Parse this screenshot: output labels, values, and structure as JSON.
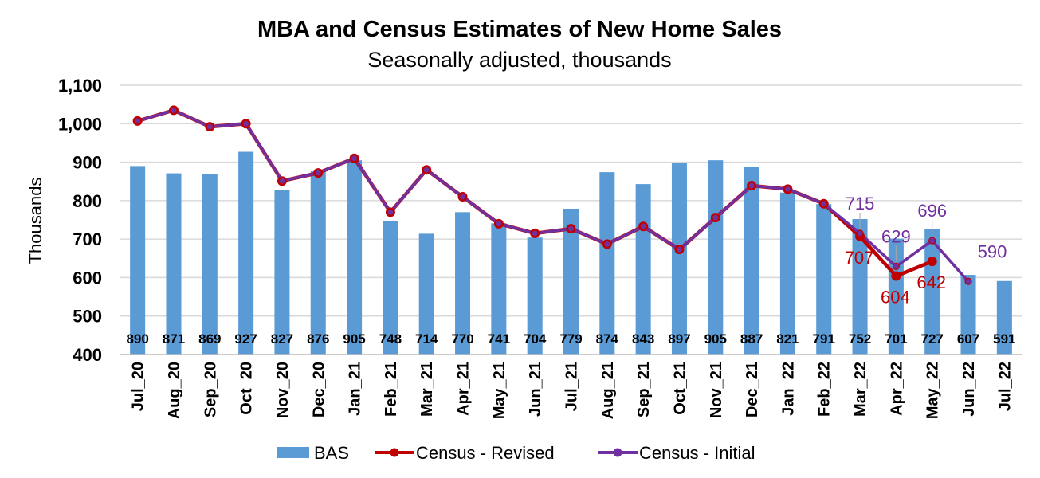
{
  "chart_data": {
    "type": "bar",
    "title": "MBA and Census Estimates of New Home Sales",
    "subtitle": "Seasonally adjusted, thousands",
    "ylabel": "Thousands",
    "xlabel": "",
    "ylim": [
      400,
      1100
    ],
    "yticks": [
      400,
      500,
      600,
      700,
      800,
      900,
      1000,
      1100
    ],
    "ytick_labels": [
      "400",
      "500",
      "600",
      "700",
      "800",
      "900",
      "1,000",
      "1,100"
    ],
    "grid": true,
    "legend_position": "bottom",
    "categories": [
      "Jul_20",
      "Aug_20",
      "Sep_20",
      "Oct_20",
      "Nov_20",
      "Dec_20",
      "Jan_21",
      "Feb_21",
      "Mar_21",
      "Apr_21",
      "May_21",
      "Jun_21",
      "Jul_21",
      "Aug_21",
      "Sep_21",
      "Oct_21",
      "Nov_21",
      "Dec_21",
      "Jan_22",
      "Feb_22",
      "Mar_22",
      "Apr_22",
      "May_22",
      "Jun_22",
      "Jul_22"
    ],
    "series": [
      {
        "name": "BAS",
        "type": "bar",
        "color": "#5B9BD5",
        "values": [
          890,
          871,
          869,
          927,
          827,
          876,
          905,
          748,
          714,
          770,
          741,
          704,
          779,
          874,
          843,
          897,
          905,
          887,
          821,
          791,
          752,
          701,
          727,
          607,
          591
        ]
      },
      {
        "name": "Census - Revised",
        "type": "line",
        "color": "#C00000",
        "values": [
          1007,
          1035,
          992,
          1000,
          851,
          872,
          910,
          770,
          880,
          810,
          740,
          715,
          727,
          687,
          733,
          673,
          756,
          839,
          830,
          792,
          707,
          604,
          642,
          null,
          null
        ],
        "point_labels": [
          null,
          null,
          null,
          null,
          null,
          null,
          null,
          null,
          null,
          null,
          null,
          null,
          null,
          null,
          null,
          null,
          null,
          null,
          null,
          null,
          "707",
          "604",
          "642",
          null,
          null
        ]
      },
      {
        "name": "Census - Initial",
        "type": "line",
        "color": "#7030A0",
        "values": [
          1007,
          1035,
          992,
          1000,
          851,
          872,
          910,
          770,
          880,
          810,
          740,
          715,
          727,
          687,
          733,
          673,
          756,
          839,
          830,
          792,
          715,
          629,
          696,
          590,
          null
        ],
        "point_labels": [
          null,
          null,
          null,
          null,
          null,
          null,
          null,
          null,
          null,
          null,
          null,
          null,
          null,
          null,
          null,
          null,
          null,
          null,
          null,
          null,
          "715",
          "629",
          "696",
          "590",
          null
        ]
      }
    ]
  }
}
